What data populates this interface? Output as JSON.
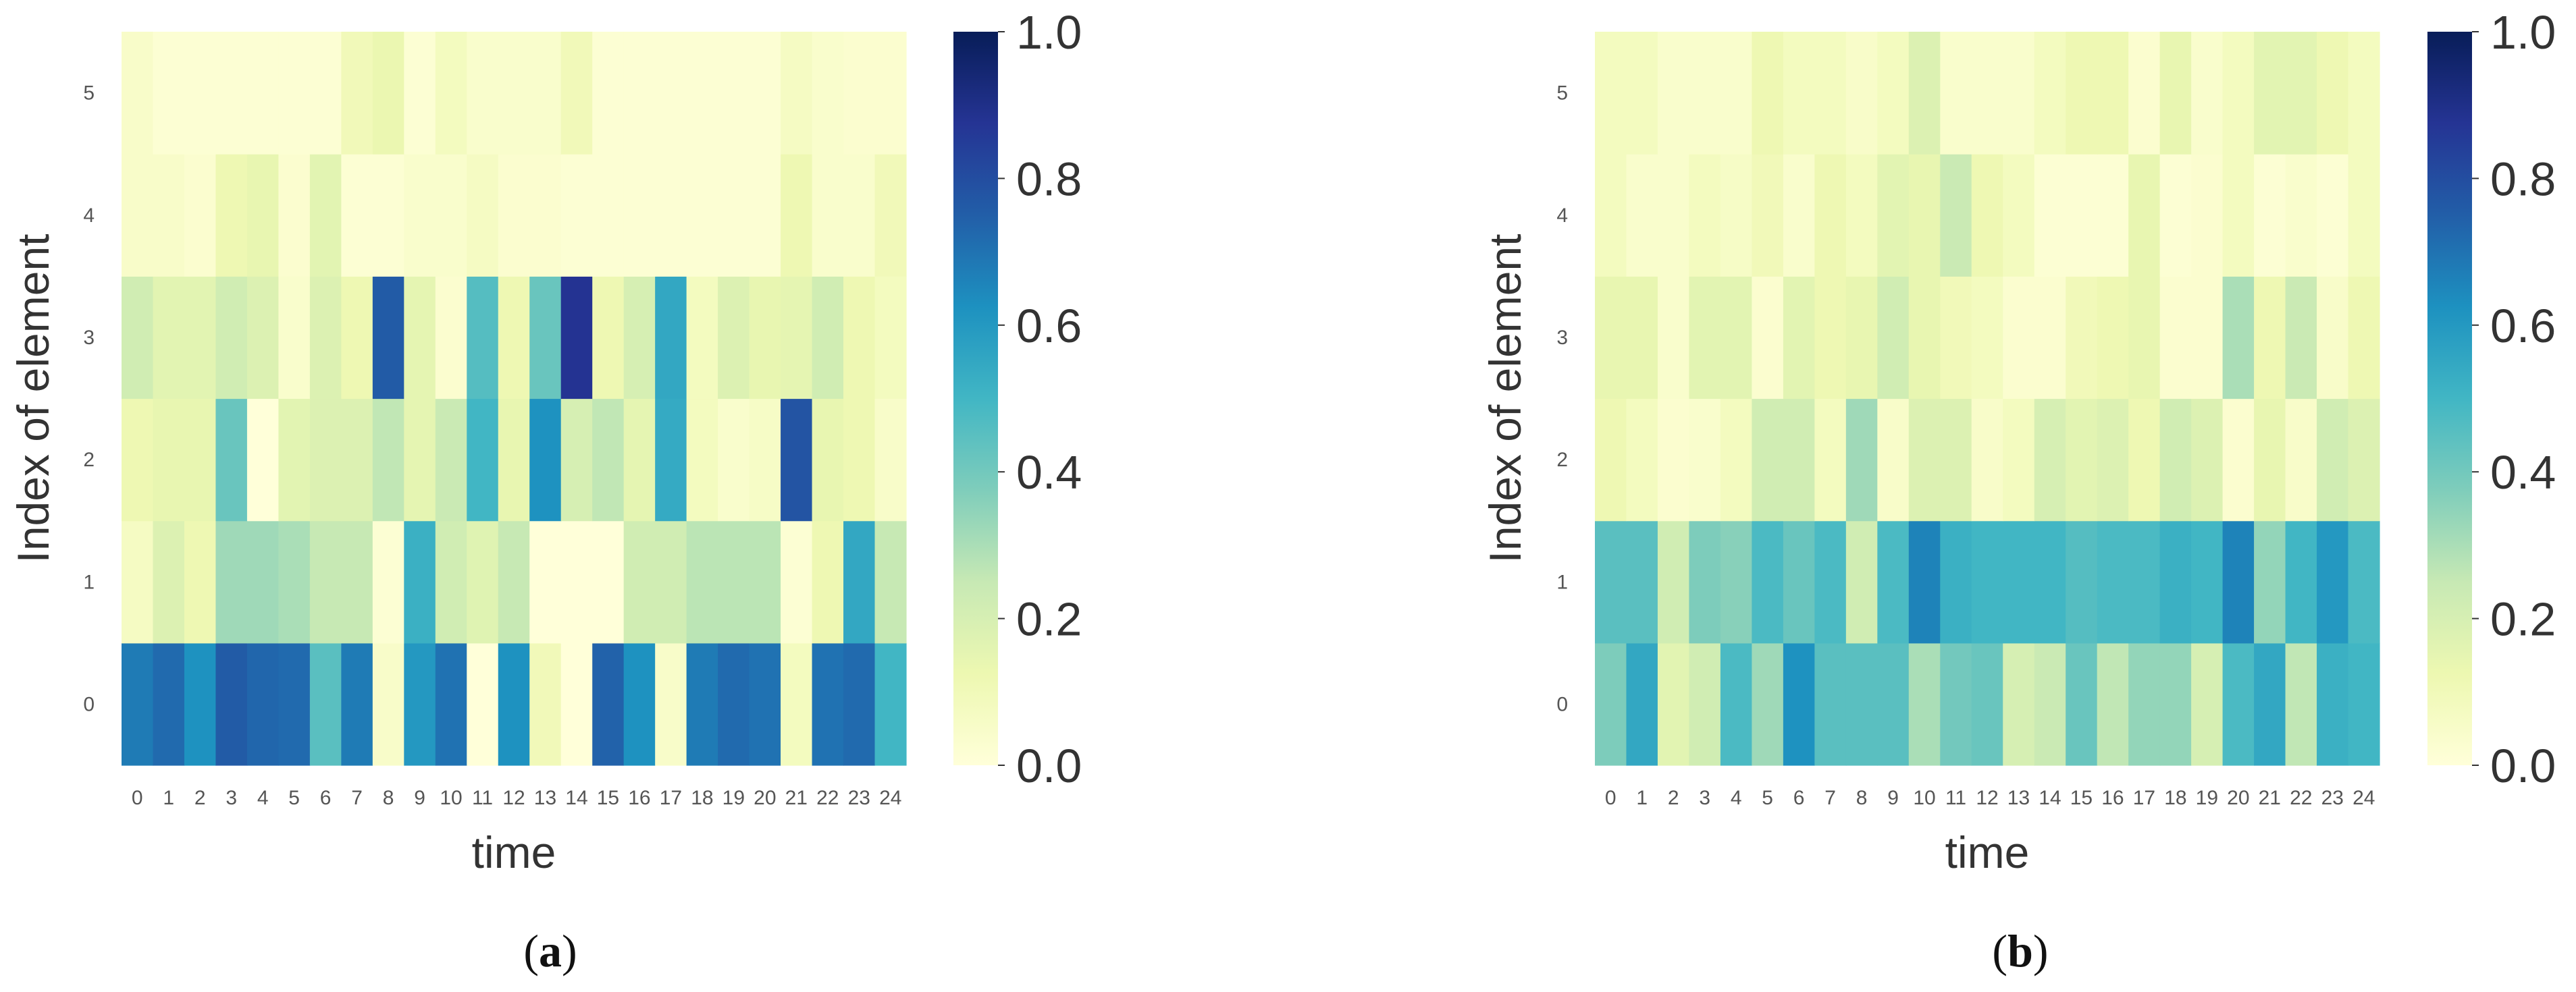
{
  "figure": {
    "title": ""
  },
  "colorscale": {
    "name": "YlGnBu",
    "stops": [
      "#ffffd9",
      "#edf8b1",
      "#c7e9b4",
      "#7fcdbb",
      "#41b6c4",
      "#1d91c0",
      "#225ea8",
      "#253494",
      "#081d58"
    ]
  },
  "chart_data": [
    {
      "type": "heatmap",
      "panel_label": "(a)",
      "panel_letter": "a",
      "xlabel": "time",
      "ylabel": "Index of element",
      "x": [
        "0",
        "1",
        "2",
        "3",
        "4",
        "5",
        "6",
        "7",
        "8",
        "9",
        "10",
        "11",
        "12",
        "13",
        "14",
        "15",
        "16",
        "17",
        "18",
        "19",
        "20",
        "21",
        "22",
        "23",
        "24"
      ],
      "y": [
        "0",
        "1",
        "2",
        "3",
        "4",
        "5"
      ],
      "vmin": 0.0,
      "vmax": 1.0,
      "colorbar_ticks": [
        "0.0",
        "0.2",
        "0.4",
        "0.6",
        "0.8",
        "1.0"
      ],
      "values": [
        [
          0.68,
          0.72,
          0.62,
          0.76,
          0.73,
          0.72,
          0.45,
          0.68,
          0.05,
          0.6,
          0.7,
          0.0,
          0.62,
          0.1,
          0.0,
          0.74,
          0.62,
          0.05,
          0.68,
          0.72,
          0.7,
          0.08,
          0.7,
          0.72,
          0.5
        ],
        [
          0.07,
          0.18,
          0.12,
          0.32,
          0.32,
          0.3,
          0.25,
          0.25,
          0.02,
          0.52,
          0.22,
          0.17,
          0.25,
          0.0,
          0.0,
          0.0,
          0.22,
          0.22,
          0.27,
          0.27,
          0.27,
          0.02,
          0.12,
          0.55,
          0.25
        ],
        [
          0.12,
          0.14,
          0.14,
          0.42,
          0.0,
          0.16,
          0.18,
          0.18,
          0.26,
          0.15,
          0.24,
          0.5,
          0.14,
          0.62,
          0.2,
          0.26,
          0.15,
          0.54,
          0.08,
          0.04,
          0.06,
          0.78,
          0.14,
          0.12,
          0.05
        ],
        [
          0.22,
          0.16,
          0.16,
          0.22,
          0.18,
          0.04,
          0.18,
          0.12,
          0.76,
          0.15,
          0.03,
          0.46,
          0.12,
          0.42,
          0.88,
          0.12,
          0.2,
          0.55,
          0.08,
          0.18,
          0.14,
          0.15,
          0.22,
          0.12,
          0.08
        ],
        [
          0.05,
          0.05,
          0.03,
          0.12,
          0.14,
          0.03,
          0.16,
          0.02,
          0.02,
          0.04,
          0.04,
          0.07,
          0.03,
          0.03,
          0.02,
          0.02,
          0.02,
          0.02,
          0.02,
          0.02,
          0.02,
          0.12,
          0.04,
          0.04,
          0.1
        ],
        [
          0.05,
          0.02,
          0.02,
          0.02,
          0.02,
          0.02,
          0.02,
          0.1,
          0.13,
          0.02,
          0.08,
          0.04,
          0.04,
          0.04,
          0.1,
          0.02,
          0.02,
          0.02,
          0.02,
          0.02,
          0.02,
          0.07,
          0.04,
          0.03,
          0.03
        ]
      ]
    },
    {
      "type": "heatmap",
      "panel_label": "(b)",
      "panel_letter": "b",
      "xlabel": "time",
      "ylabel": "Index of element",
      "x": [
        "0",
        "1",
        "2",
        "3",
        "4",
        "5",
        "6",
        "7",
        "8",
        "9",
        "10",
        "11",
        "12",
        "13",
        "14",
        "15",
        "16",
        "17",
        "18",
        "19",
        "20",
        "21",
        "22",
        "23",
        "24"
      ],
      "y": [
        "0",
        "1",
        "2",
        "3",
        "4",
        "5"
      ],
      "vmin": 0.0,
      "vmax": 1.0,
      "colorbar_ticks": [
        "0.0",
        "0.2",
        "0.4",
        "0.6",
        "0.8",
        "1.0"
      ],
      "values": [
        [
          0.38,
          0.55,
          0.16,
          0.22,
          0.48,
          0.32,
          0.62,
          0.45,
          0.45,
          0.45,
          0.3,
          0.4,
          0.42,
          0.2,
          0.24,
          0.42,
          0.26,
          0.34,
          0.34,
          0.2,
          0.48,
          0.55,
          0.26,
          0.52,
          0.5
        ],
        [
          0.45,
          0.45,
          0.22,
          0.38,
          0.36,
          0.48,
          0.42,
          0.48,
          0.22,
          0.48,
          0.66,
          0.52,
          0.5,
          0.5,
          0.5,
          0.46,
          0.48,
          0.48,
          0.52,
          0.5,
          0.66,
          0.34,
          0.5,
          0.6,
          0.48
        ],
        [
          0.12,
          0.08,
          0.03,
          0.04,
          0.08,
          0.22,
          0.22,
          0.08,
          0.32,
          0.05,
          0.18,
          0.18,
          0.05,
          0.08,
          0.2,
          0.16,
          0.18,
          0.12,
          0.22,
          0.18,
          0.03,
          0.14,
          0.05,
          0.22,
          0.18
        ],
        [
          0.14,
          0.14,
          0.04,
          0.16,
          0.16,
          0.03,
          0.16,
          0.12,
          0.14,
          0.22,
          0.14,
          0.1,
          0.08,
          0.03,
          0.03,
          0.1,
          0.12,
          0.14,
          0.03,
          0.03,
          0.3,
          0.12,
          0.24,
          0.05,
          0.12
        ],
        [
          0.08,
          0.04,
          0.04,
          0.08,
          0.06,
          0.1,
          0.04,
          0.12,
          0.08,
          0.16,
          0.14,
          0.24,
          0.12,
          0.08,
          0.02,
          0.02,
          0.02,
          0.14,
          0.02,
          0.03,
          0.08,
          0.02,
          0.04,
          0.02,
          0.08
        ],
        [
          0.08,
          0.08,
          0.04,
          0.04,
          0.04,
          0.12,
          0.08,
          0.08,
          0.05,
          0.08,
          0.18,
          0.04,
          0.04,
          0.04,
          0.08,
          0.12,
          0.12,
          0.03,
          0.14,
          0.04,
          0.08,
          0.16,
          0.16,
          0.12,
          0.08
        ]
      ]
    }
  ]
}
